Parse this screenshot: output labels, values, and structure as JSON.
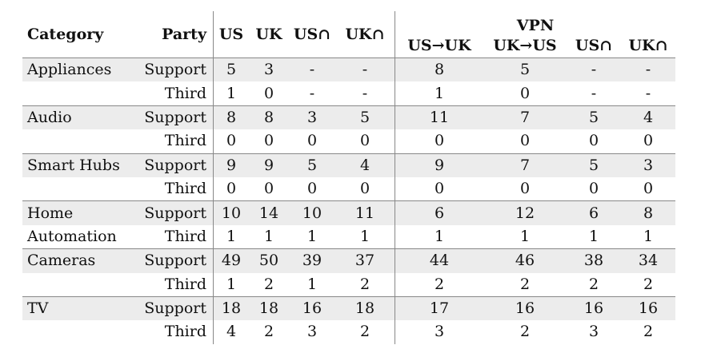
{
  "header": {
    "category": "Category",
    "party": "Party",
    "us": "US",
    "uk": "UK",
    "us_cap": "US∩",
    "uk_cap": "UK∩",
    "vpn": "VPN",
    "vpn_cols": [
      "US→UK",
      "UK→US",
      "US∩",
      "UK∩"
    ]
  },
  "groups": [
    {
      "category": [
        "Appliances",
        ""
      ],
      "rows": [
        {
          "party": "Support",
          "values": [
            "5",
            "3",
            "-",
            "-",
            "8",
            "5",
            "-",
            "-"
          ]
        },
        {
          "party": "Third",
          "values": [
            "1",
            "0",
            "-",
            "-",
            "1",
            "0",
            "-",
            "-"
          ]
        }
      ]
    },
    {
      "category": [
        "Audio",
        ""
      ],
      "rows": [
        {
          "party": "Support",
          "values": [
            "8",
            "8",
            "3",
            "5",
            "11",
            "7",
            "5",
            "4"
          ]
        },
        {
          "party": "Third",
          "values": [
            "0",
            "0",
            "0",
            "0",
            "0",
            "0",
            "0",
            "0"
          ]
        }
      ]
    },
    {
      "category": [
        "Smart Hubs",
        ""
      ],
      "rows": [
        {
          "party": "Support",
          "values": [
            "9",
            "9",
            "5",
            "4",
            "9",
            "7",
            "5",
            "3"
          ]
        },
        {
          "party": "Third",
          "values": [
            "0",
            "0",
            "0",
            "0",
            "0",
            "0",
            "0",
            "0"
          ]
        }
      ]
    },
    {
      "category": [
        "Home",
        "Automation"
      ],
      "rows": [
        {
          "party": "Support",
          "values": [
            "10",
            "14",
            "10",
            "11",
            "6",
            "12",
            "6",
            "8"
          ]
        },
        {
          "party": "Third",
          "values": [
            "1",
            "1",
            "1",
            "1",
            "1",
            "1",
            "1",
            "1"
          ]
        }
      ]
    },
    {
      "category": [
        "Cameras",
        ""
      ],
      "rows": [
        {
          "party": "Support",
          "values": [
            "49",
            "50",
            "39",
            "37",
            "44",
            "46",
            "38",
            "34"
          ]
        },
        {
          "party": "Third",
          "values": [
            "1",
            "2",
            "1",
            "2",
            "2",
            "2",
            "2",
            "2"
          ]
        }
      ]
    },
    {
      "category": [
        "TV",
        ""
      ],
      "rows": [
        {
          "party": "Support",
          "values": [
            "18",
            "18",
            "16",
            "18",
            "17",
            "16",
            "16",
            "16"
          ]
        },
        {
          "party": "Third",
          "values": [
            "4",
            "2",
            "3",
            "2",
            "3",
            "2",
            "3",
            "2"
          ]
        }
      ]
    }
  ]
}
